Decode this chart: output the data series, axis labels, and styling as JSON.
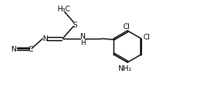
{
  "bg_color": "#ffffff",
  "line_color": "#000000",
  "lw": 1.0,
  "fs": 6.5,
  "fig_width": 2.48,
  "fig_height": 1.23,
  "dpi": 100,
  "xlim": [
    0,
    10
  ],
  "ylim": [
    0,
    5
  ]
}
